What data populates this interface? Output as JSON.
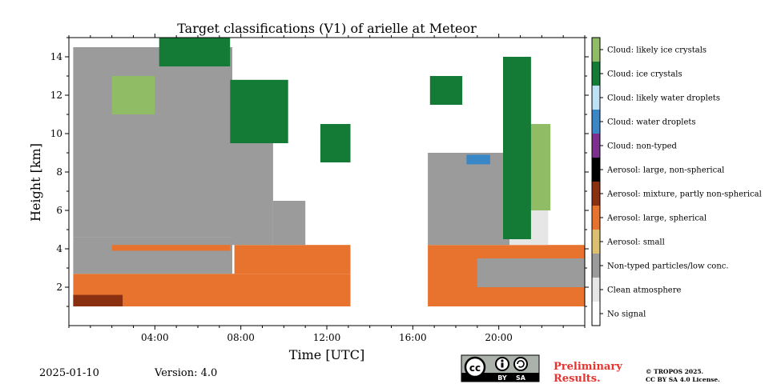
{
  "chart_data": {
    "type": "heatmap",
    "title": "Target classifications (V1) of arielle at Meteor",
    "xlabel": "Time [UTC]",
    "ylabel": "Height [km]",
    "xlim": [
      0,
      24
    ],
    "ylim": [
      0,
      15
    ],
    "x_ticks": [
      {
        "value": 4,
        "label": "04:00"
      },
      {
        "value": 8,
        "label": "08:00"
      },
      {
        "value": 12,
        "label": "12:00"
      },
      {
        "value": 16,
        "label": "16:00"
      },
      {
        "value": 20,
        "label": "20:00"
      }
    ],
    "y_ticks": [
      {
        "value": 2,
        "label": "2"
      },
      {
        "value": 4,
        "label": "4"
      },
      {
        "value": 6,
        "label": "6"
      },
      {
        "value": 8,
        "label": "8"
      },
      {
        "value": 10,
        "label": "10"
      },
      {
        "value": 12,
        "label": "12"
      },
      {
        "value": 14,
        "label": "14"
      }
    ],
    "legend": [
      {
        "label": "Cloud: likely ice crystals",
        "color": "#8fbc64"
      },
      {
        "label": "Cloud: ice crystals",
        "color": "#137b35"
      },
      {
        "label": "Cloud: likely water droplets",
        "color": "#bfe1f5"
      },
      {
        "label": "Cloud: water droplets",
        "color": "#3a87c8"
      },
      {
        "label": "Cloud: non-typed",
        "color": "#7c2f8c"
      },
      {
        "label": "Aerosol: large, non-spherical",
        "color": "#000000"
      },
      {
        "label": "Aerosol: mixture, partly non-spherical",
        "color": "#8a2f0f"
      },
      {
        "label": "Aerosol: large, spherical",
        "color": "#e8732e"
      },
      {
        "label": "Aerosol: small",
        "color": "#dcc070"
      },
      {
        "label": "Non-typed particles/low conc.",
        "color": "#9b9b9b"
      },
      {
        "label": "Clean atmosphere",
        "color": "#e6e6e6"
      },
      {
        "label": "No signal",
        "color": "#ffffff"
      }
    ],
    "regions": [
      {
        "class": "Aerosol: large, spherical",
        "t0": 0.2,
        "t1": 13.1,
        "h0": 1.0,
        "h1": 2.7
      },
      {
        "class": "Non-typed particles/low conc.",
        "t0": 0.2,
        "t1": 7.6,
        "h0": 2.7,
        "h1": 4.6
      },
      {
        "class": "Aerosol: large, spherical",
        "t0": 2.0,
        "t1": 7.5,
        "h0": 3.9,
        "h1": 4.2
      },
      {
        "class": "Aerosol: large, spherical",
        "t0": 7.7,
        "t1": 13.1,
        "h0": 2.7,
        "h1": 4.2
      },
      {
        "class": "Non-typed particles/low conc.",
        "t0": 0.2,
        "t1": 7.6,
        "h0": 4.6,
        "h1": 14.5
      },
      {
        "class": "Non-typed particles/low conc.",
        "t0": 7.6,
        "t1": 9.5,
        "h0": 4.2,
        "h1": 10.5
      },
      {
        "class": "Non-typed particles/low conc.",
        "t0": 9.5,
        "t1": 11.0,
        "h0": 4.2,
        "h1": 6.5
      },
      {
        "class": "Aerosol: mixture, partly non-spherical",
        "t0": 0.2,
        "t1": 2.5,
        "h0": 1.0,
        "h1": 1.6
      },
      {
        "class": "Cloud: ice crystals",
        "t0": 7.5,
        "t1": 10.2,
        "h0": 9.5,
        "h1": 12.8
      },
      {
        "class": "Cloud: ice crystals",
        "t0": 11.7,
        "t1": 13.1,
        "h0": 8.5,
        "h1": 10.5
      },
      {
        "class": "Cloud: ice crystals",
        "t0": 4.2,
        "t1": 7.5,
        "h0": 13.5,
        "h1": 15.0
      },
      {
        "class": "Cloud: likely ice crystals",
        "t0": 2.0,
        "t1": 4.0,
        "h0": 11.0,
        "h1": 13.0
      },
      {
        "class": "Aerosol: large, spherical",
        "t0": 16.7,
        "t1": 24.0,
        "h0": 1.0,
        "h1": 4.2
      },
      {
        "class": "Non-typed particles/low conc.",
        "t0": 19.0,
        "t1": 24.0,
        "h0": 2.0,
        "h1": 3.5
      },
      {
        "class": "Non-typed particles/low conc.",
        "t0": 16.7,
        "t1": 20.5,
        "h0": 4.2,
        "h1": 9.0
      },
      {
        "class": "Clean atmosphere",
        "t0": 20.5,
        "t1": 22.3,
        "h0": 4.2,
        "h1": 8.0
      },
      {
        "class": "Cloud: likely ice crystals",
        "t0": 21.0,
        "t1": 22.4,
        "h0": 6.0,
        "h1": 10.5
      },
      {
        "class": "Cloud: ice crystals",
        "t0": 20.2,
        "t1": 21.5,
        "h0": 4.5,
        "h1": 14.0
      },
      {
        "class": "Cloud: water droplets",
        "t0": 18.5,
        "t1": 19.6,
        "h0": 8.4,
        "h1": 8.9
      },
      {
        "class": "Cloud: ice crystals",
        "t0": 16.8,
        "t1": 18.3,
        "h0": 11.5,
        "h1": 13.0
      }
    ]
  },
  "footer": {
    "date": "2025-01-10",
    "version": "Version: 4.0",
    "preliminary": [
      "Preliminary",
      "Results."
    ],
    "license": [
      "© TROPOS 2025.",
      "CC BY SA 4.0 License."
    ],
    "cc_badge": [
      "BY",
      "SA"
    ]
  }
}
